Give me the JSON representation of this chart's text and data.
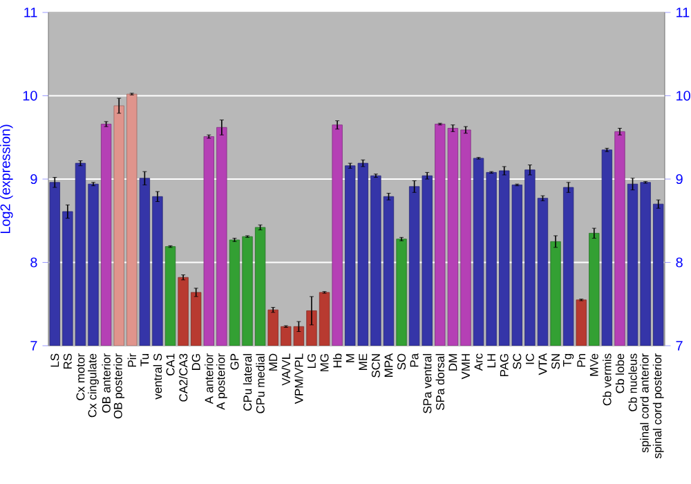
{
  "chart_data": {
    "type": "bar",
    "ylabel": "Log2 (expression)",
    "categories": [
      "LS",
      "RS",
      "Cx motor",
      "Cx cingulate",
      "OB anterior",
      "OB posterior",
      "Pir",
      "Tu",
      "ventral S",
      "CA1",
      "CA2/CA3",
      "DG",
      "A anterior",
      "A posterior",
      "GP",
      "CPu lateral",
      "CPu medial",
      "MD",
      "VA/VL",
      "VPM/VPL",
      "LG",
      "MG",
      "Hb",
      "M",
      "ME",
      "SCN",
      "MPA",
      "SO",
      "Pa",
      "SPa ventral",
      "SPa dorsal",
      "DM",
      "VMH",
      "Arc",
      "LH",
      "PAG",
      "SC",
      "IC",
      "VTA",
      "SN",
      "Tg",
      "Pn",
      "MVe",
      "Cb vermis",
      "Cb lobe",
      "Cb nucleus",
      "spinal cord anterior",
      "spinal cord posterior"
    ],
    "values": [
      8.96,
      8.61,
      9.19,
      8.94,
      9.66,
      9.88,
      10.02,
      9.01,
      8.79,
      8.19,
      7.82,
      7.64,
      9.51,
      9.62,
      8.27,
      8.31,
      8.42,
      7.43,
      7.23,
      7.23,
      7.42,
      7.64,
      9.65,
      9.16,
      9.19,
      9.04,
      8.79,
      8.28,
      8.91,
      9.04,
      9.66,
      9.61,
      9.59,
      9.25,
      9.08,
      9.1,
      8.93,
      9.11,
      8.77,
      8.25,
      8.9,
      7.55,
      8.35,
      9.35,
      9.57,
      8.94,
      8.96,
      8.7
    ],
    "errors": [
      0.06,
      0.08,
      0.03,
      0.02,
      0.03,
      0.09,
      0.01,
      0.08,
      0.06,
      0.01,
      0.03,
      0.05,
      0.02,
      0.09,
      0.02,
      0.01,
      0.03,
      0.03,
      0.01,
      0.06,
      0.17,
      0.01,
      0.05,
      0.03,
      0.04,
      0.02,
      0.04,
      0.02,
      0.07,
      0.04,
      0.01,
      0.04,
      0.04,
      0.01,
      0.01,
      0.05,
      0.01,
      0.06,
      0.03,
      0.07,
      0.06,
      0.01,
      0.06,
      0.02,
      0.04,
      0.07,
      0.01,
      0.05
    ],
    "colors": [
      "#3535a8",
      "#3535a8",
      "#3535a8",
      "#3535a8",
      "#b540b5",
      "#e0948c",
      "#e0948c",
      "#3535a8",
      "#3535a8",
      "#33a033",
      "#b83a30",
      "#b83a30",
      "#b540b5",
      "#b540b5",
      "#33a033",
      "#33a033",
      "#33a033",
      "#b83a30",
      "#b83a30",
      "#b83a30",
      "#b83a30",
      "#b83a30",
      "#b540b5",
      "#3535a8",
      "#3535a8",
      "#3535a8",
      "#3535a8",
      "#33a033",
      "#3535a8",
      "#3535a8",
      "#b540b5",
      "#b540b5",
      "#b540b5",
      "#3535a8",
      "#3535a8",
      "#3535a8",
      "#3535a8",
      "#3535a8",
      "#3535a8",
      "#33a033",
      "#3535a8",
      "#b83a30",
      "#33a033",
      "#3535a8",
      "#b540b5",
      "#3535a8",
      "#3535a8",
      "#3535a8"
    ],
    "ylim": [
      7,
      11
    ],
    "yticks": [
      7,
      8,
      9,
      10,
      11
    ],
    "y2lim": [
      7,
      11
    ],
    "y2ticks": [
      7,
      8,
      9,
      10,
      11
    ],
    "grid": "y"
  }
}
